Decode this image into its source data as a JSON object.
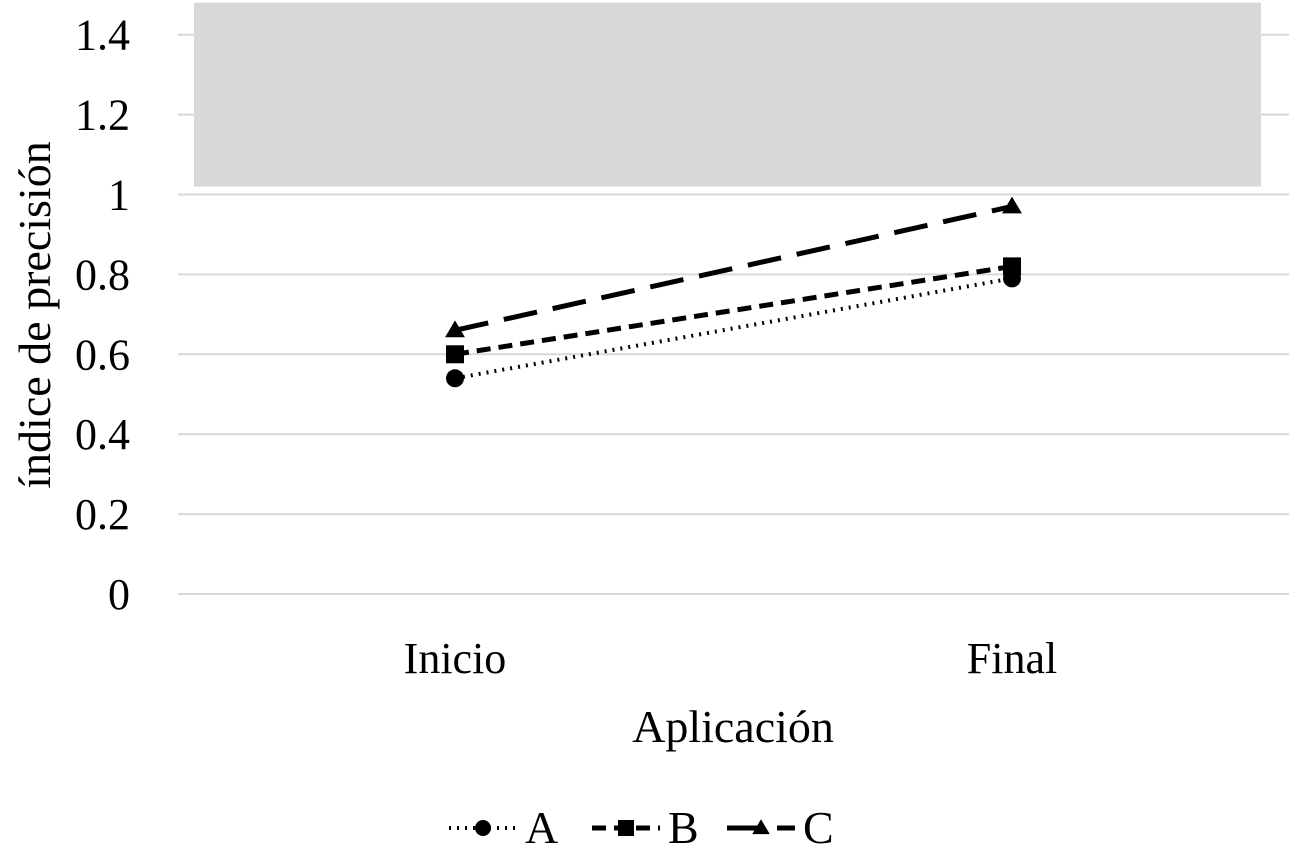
{
  "chart_data": {
    "type": "line",
    "title": "",
    "xlabel": "Aplicación",
    "ylabel": "índice de precisión",
    "categories": [
      "Inicio",
      "Final"
    ],
    "ylim": [
      0,
      1.4
    ],
    "yticks": [
      0,
      0.2,
      0.4,
      0.6,
      0.8,
      1,
      1.2,
      1.4
    ],
    "ytick_labels": [
      "0",
      "0.2",
      "0.4",
      "0.6",
      "0.8",
      "1",
      "1.2",
      "1.4"
    ],
    "grid": true,
    "legend_position": "bottom",
    "shaded_band": {
      "from": 1.02,
      "to": 1.48,
      "color": "#d9d7d8"
    },
    "series": [
      {
        "name": "A",
        "values": [
          0.54,
          0.79
        ],
        "marker": "circle",
        "dash": "dotted",
        "color": "#000000"
      },
      {
        "name": "B",
        "values": [
          0.6,
          0.82
        ],
        "marker": "square",
        "dash": "dashed",
        "color": "#000000"
      },
      {
        "name": "C",
        "values": [
          0.66,
          0.97
        ],
        "marker": "triangle",
        "dash": "long-dash",
        "color": "#000000"
      }
    ]
  }
}
